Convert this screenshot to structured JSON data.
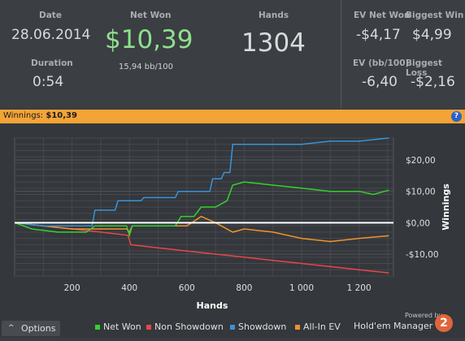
{
  "stats": {
    "date_label": "Date",
    "date_value": "28.06.2014",
    "duration_label": "Duration",
    "duration_value": "0:54",
    "net_won_label": "Net Won",
    "net_won_value": "$10,39",
    "net_won_sub": "15,94 bb/100",
    "hands_label": "Hands",
    "hands_value": "1304",
    "ev_net_won_label": "EV Net Won",
    "ev_net_won_value": "-$4,17",
    "biggest_win_label": "Biggest Win",
    "biggest_win_value": "$4,99",
    "ev_bb_label": "EV (bb/100)",
    "ev_bb_value": "-6,40",
    "biggest_loss_label": "Biggest Loss",
    "biggest_loss_value": "-$2,16"
  },
  "winnings_bar": {
    "label": "Winnings:",
    "value": "$10,39",
    "help_glyph": "?"
  },
  "chart_data": {
    "type": "line",
    "xlabel": "Hands",
    "ylabel": "Winnings",
    "xlim": [
      0,
      1320
    ],
    "ylim": [
      -17,
      27
    ],
    "x_ticks": [
      200,
      400,
      600,
      800,
      1000,
      1200
    ],
    "x_tick_labels": [
      "200",
      "400",
      "600",
      "800",
      "1 000",
      "1 200"
    ],
    "y_ticks": [
      20,
      10,
      0,
      -10
    ],
    "y_tick_labels": [
      "$20,00",
      "$10,00",
      "$0,00",
      "-$10,00"
    ],
    "grid": true,
    "legend_position": "bottom",
    "colors": {
      "net_won": "#34d12f",
      "non_showdown": "#e8454c",
      "showdown": "#3a93d8",
      "all_in_ev": "#f0922e",
      "zero_line": "#ffffff"
    },
    "series": [
      {
        "name": "Net Won",
        "key": "net_won",
        "x": [
          0,
          60,
          150,
          250,
          280,
          320,
          390,
          400,
          410,
          560,
          580,
          625,
          650,
          700,
          740,
          760,
          800,
          900,
          1000,
          1100,
          1200,
          1250,
          1304
        ],
        "y": [
          0,
          -2,
          -3,
          -3,
          -1,
          -1,
          -1,
          -4,
          -1,
          -1,
          2,
          2,
          5,
          5,
          7,
          12,
          13,
          12,
          11,
          10,
          10,
          9,
          10.39
        ]
      },
      {
        "name": "Non Showdown",
        "key": "non_showdown",
        "x": [
          0,
          100,
          200,
          300,
          395,
          405,
          500,
          600,
          700,
          800,
          900,
          1000,
          1100,
          1200,
          1304
        ],
        "y": [
          0,
          -1,
          -2,
          -3,
          -4,
          -7,
          -8,
          -9,
          -10,
          -11,
          -12,
          -13,
          -14,
          -15,
          -16
        ]
      },
      {
        "name": "Showdown",
        "key": "showdown",
        "x": [
          0,
          100,
          200,
          270,
          280,
          350,
          360,
          440,
          450,
          560,
          570,
          680,
          690,
          720,
          730,
          750,
          760,
          800,
          900,
          1000,
          1100,
          1200,
          1304
        ],
        "y": [
          0,
          -1,
          -1,
          -1,
          4,
          4,
          7,
          7,
          8,
          8,
          10,
          10,
          14,
          14,
          16,
          16,
          25,
          25,
          25,
          25,
          26,
          26,
          27
        ]
      },
      {
        "name": "All-In EV",
        "key": "all_in_ev",
        "x": [
          0,
          100,
          200,
          280,
          390,
          400,
          410,
          560,
          600,
          650,
          700,
          760,
          800,
          900,
          1000,
          1100,
          1200,
          1304
        ],
        "y": [
          0,
          -1,
          -2,
          -2,
          -2,
          -3,
          -1,
          -1,
          -1,
          2,
          0,
          -3,
          -2,
          -3,
          -5,
          -6,
          -5,
          -4.17
        ]
      }
    ]
  },
  "options": {
    "label": "Options",
    "icon": "chevron-up-icon",
    "glyph": "^"
  },
  "legend": [
    {
      "key": "net_won",
      "label": "Net Won"
    },
    {
      "key": "non_showdown",
      "label": "Non Showdown"
    },
    {
      "key": "showdown",
      "label": "Showdown"
    },
    {
      "key": "all_in_ev",
      "label": "All-In EV"
    }
  ],
  "branding": {
    "powered": "Powered by",
    "name": "Hold'em Manager",
    "version": "2"
  }
}
